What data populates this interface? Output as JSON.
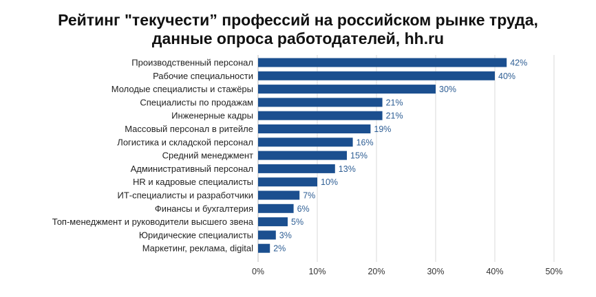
{
  "chart_data": {
    "type": "bar",
    "orientation": "horizontal",
    "title_lines": [
      "Рейтинг \"текучести” профессий на российском рынке труда,",
      "данные опроса работодателей, hh.ru"
    ],
    "categories": [
      "Производственный персонал",
      "Рабочие специальности",
      "Молодые специалисты и стажёры",
      "Специалисты по продажам",
      "Инженерные кадры",
      "Массовый персонал в ритейле",
      "Логистика и складской персонал",
      "Средний менеджмент",
      "Административный персонал",
      "HR и кадровые специалисты",
      "ИТ-специалисты и разработчики",
      "Финансы и бухгалтерия",
      "Топ-менеджмент и руководители высшего звена",
      "Юридические специалисты",
      "Маркетинг, реклама, digital"
    ],
    "values": [
      42,
      40,
      30,
      21,
      21,
      19,
      16,
      15,
      13,
      10,
      7,
      6,
      5,
      3,
      2
    ],
    "value_labels": [
      "42%",
      "40%",
      "30%",
      "21%",
      "21%",
      "19%",
      "16%",
      "15%",
      "13%",
      "10%",
      "7%",
      "6%",
      "5%",
      "3%",
      "2%"
    ],
    "xlim": [
      0,
      50
    ],
    "x_ticks": [
      0,
      10,
      20,
      30,
      40,
      50
    ],
    "x_tick_labels": [
      "0%",
      "10%",
      "20%",
      "30%",
      "40%",
      "50%"
    ],
    "grid": "vertical",
    "legend": "none",
    "colors": {
      "bar": "#1b4f8f",
      "value_label": "#2e5e94",
      "grid": "#d9d9d9"
    }
  }
}
